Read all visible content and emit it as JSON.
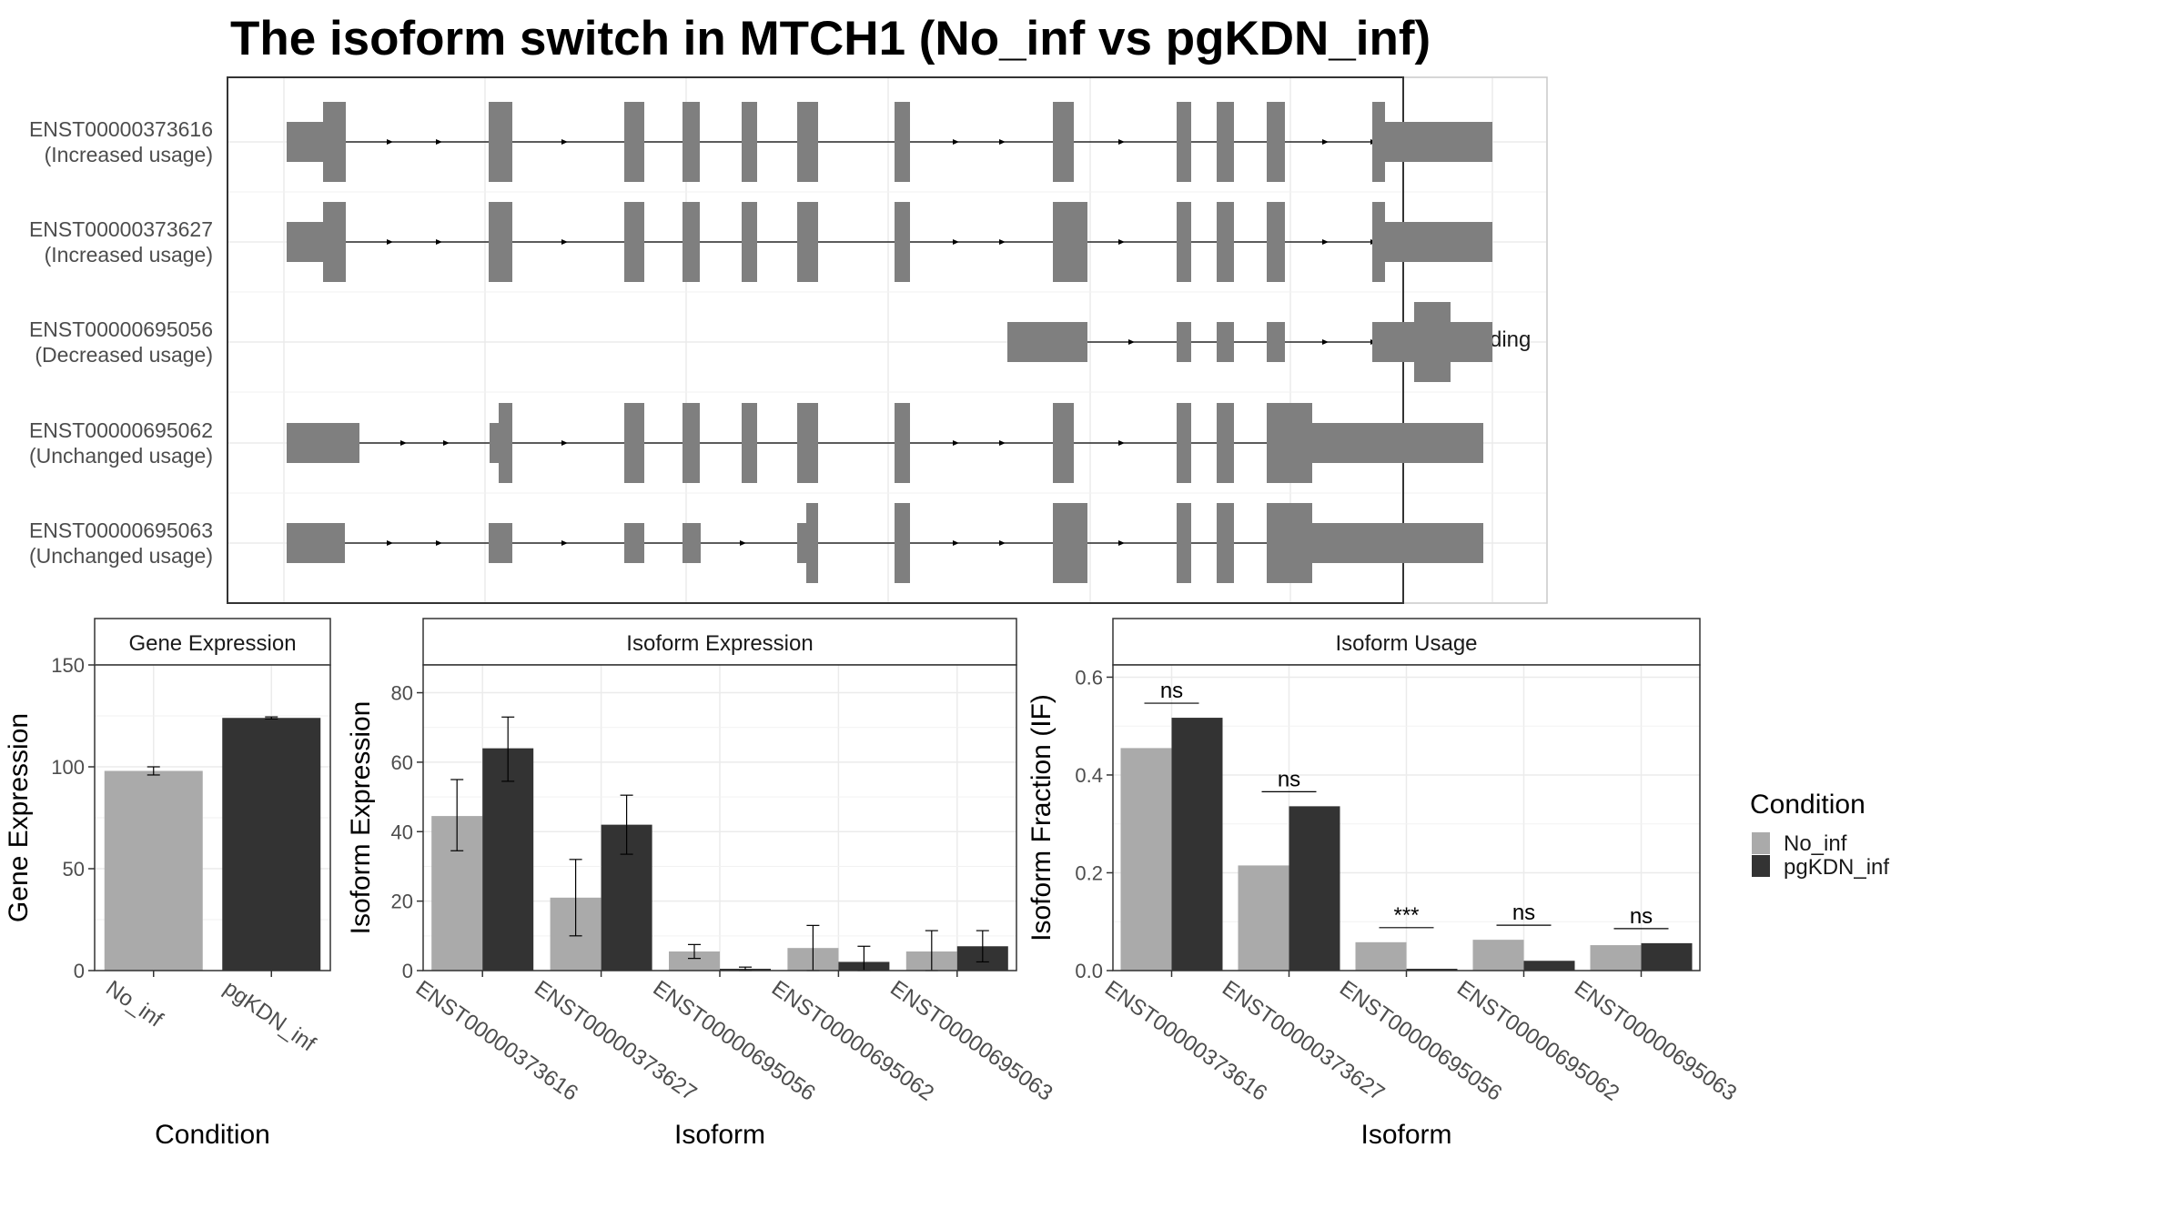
{
  "title": "The isoform switch in MTCH1 (No_inf vs pgKDN_inf)",
  "colors": {
    "No_inf": "#aaaaaa",
    "pgKDN_inf": "#333333",
    "exon": "#7f7f7f",
    "grid": "#ebebeb",
    "border": "#333333",
    "strip": "#ffffff"
  },
  "transcripts": {
    "facet_label": "Non-coding",
    "items": [
      {
        "id": "ENST00000373616",
        "usage": "(Increased usage)"
      },
      {
        "id": "ENST00000373627",
        "usage": "(Increased usage)"
      },
      {
        "id": "ENST00000695056",
        "usage": "(Decreased usage)"
      },
      {
        "id": "ENST00000695062",
        "usage": "(Unchanged usage)"
      },
      {
        "id": "ENST00000695063",
        "usage": "(Unchanged usage)"
      }
    ]
  },
  "legend": {
    "title": "Condition",
    "entries": [
      "No_inf",
      "pgKDN_inf"
    ]
  },
  "chart_data": [
    {
      "type": "bar",
      "title": "Gene Expression",
      "xlabel": "Condition",
      "ylabel": "Gene Expression",
      "categories": [
        "No_inf",
        "pgKDN_inf"
      ],
      "values": [
        98,
        124
      ],
      "errors": [
        [
          96,
          100
        ],
        [
          123.5,
          124.5
        ]
      ],
      "ylim": [
        0,
        150
      ],
      "yticks": [
        0,
        50,
        100,
        150
      ],
      "grid": true
    },
    {
      "type": "bar",
      "title": "Isoform Expression",
      "xlabel": "Isoform",
      "ylabel": "Isoform Expression",
      "categories": [
        "ENST00000373616",
        "ENST00000373627",
        "ENST00000695056",
        "ENST00000695062",
        "ENST00000695063"
      ],
      "series": [
        {
          "name": "No_inf",
          "values": [
            44.5,
            21,
            5.5,
            6.5,
            5.5
          ],
          "errors": [
            [
              34.5,
              55
            ],
            [
              10,
              32
            ],
            [
              3.5,
              7.5
            ],
            [
              0,
              13
            ],
            [
              0,
              11.5
            ]
          ]
        },
        {
          "name": "pgKDN_inf",
          "values": [
            64,
            42,
            0.5,
            2.5,
            7
          ],
          "errors": [
            [
              54.5,
              73
            ],
            [
              33.5,
              50.5
            ],
            [
              0,
              1
            ],
            [
              0,
              7
            ],
            [
              2.5,
              11.5
            ]
          ]
        }
      ],
      "ylim": [
        0,
        88
      ],
      "yticks": [
        0,
        20,
        40,
        60,
        80
      ],
      "grid": true
    },
    {
      "type": "bar",
      "title": "Isoform Usage",
      "xlabel": "Isoform",
      "ylabel": "Isoform Fraction (IF)",
      "categories": [
        "ENST00000373616",
        "ENST00000373627",
        "ENST00000695056",
        "ENST00000695062",
        "ENST00000695063"
      ],
      "series": [
        {
          "name": "No_inf",
          "values": [
            0.455,
            0.215,
            0.058,
            0.063,
            0.052
          ]
        },
        {
          "name": "pgKDN_inf",
          "values": [
            0.517,
            0.336,
            0.0,
            0.02,
            0.056
          ]
        }
      ],
      "significance": [
        "ns",
        "ns",
        "***",
        "ns",
        "ns"
      ],
      "ylim": [
        0,
        0.625
      ],
      "yticks": [
        0.0,
        0.2,
        0.4,
        0.6
      ],
      "grid": true
    }
  ]
}
